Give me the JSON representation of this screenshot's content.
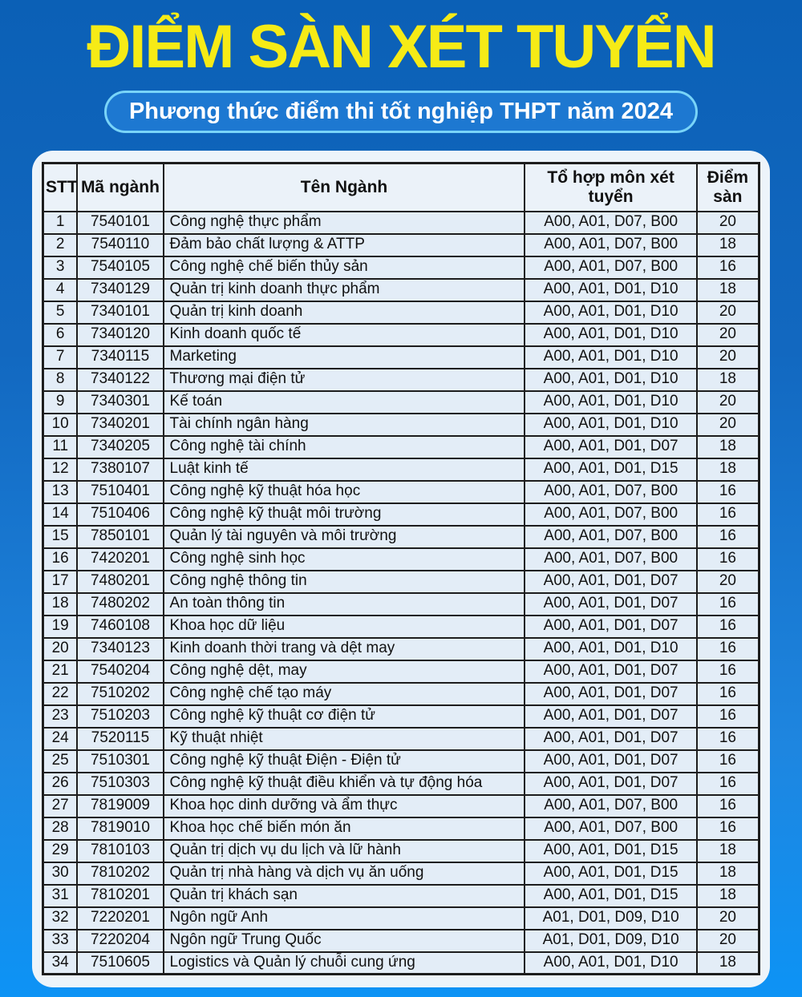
{
  "header": {
    "title": "ĐIỂM SÀN XÉT TUYỂN",
    "subtitle": "Phương thức điểm thi tốt nghiệp THPT năm 2024"
  },
  "colors": {
    "background_top": "#0b60b6",
    "background_bottom": "#0d93f5",
    "title_yellow": "#f6eb16",
    "subtitle_border": "#79d4f8",
    "subtitle_background": "#1d78d1",
    "panel_background": "#edf4fa",
    "row_background": "#e3edf7",
    "table_border": "#1d1d1d"
  },
  "table": {
    "columns": [
      "STT",
      "Mã ngành",
      "Tên Ngành",
      "Tổ hợp môn xét tuyển",
      "Điểm sàn"
    ],
    "rows": [
      [
        1,
        "7540101",
        "Công nghệ thực phẩm",
        "A00, A01, D07, B00",
        20
      ],
      [
        2,
        "7540110",
        "Đảm bảo chất lượng & ATTP",
        "A00, A01, D07, B00",
        18
      ],
      [
        3,
        "7540105",
        "Công nghệ chế biến thủy sản",
        "A00, A01, D07, B00",
        16
      ],
      [
        4,
        "7340129",
        "Quản trị kinh doanh thực phẩm",
        "A00, A01, D01, D10",
        18
      ],
      [
        5,
        "7340101",
        "Quản trị kinh doanh",
        "A00, A01, D01, D10",
        20
      ],
      [
        6,
        "7340120",
        "Kinh doanh quốc tế",
        "A00, A01, D01, D10",
        20
      ],
      [
        7,
        "7340115",
        "Marketing",
        "A00, A01, D01, D10",
        20
      ],
      [
        8,
        "7340122",
        "Thương mại điện tử",
        "A00, A01, D01, D10",
        18
      ],
      [
        9,
        "7340301",
        "Kế toán",
        "A00, A01, D01, D10",
        20
      ],
      [
        10,
        "7340201",
        "Tài chính ngân hàng",
        "A00, A01, D01, D10",
        20
      ],
      [
        11,
        "7340205",
        "Công nghệ tài chính",
        "A00, A01, D01, D07",
        18
      ],
      [
        12,
        "7380107",
        "Luật kinh tế",
        "A00, A01, D01, D15",
        18
      ],
      [
        13,
        "7510401",
        "Công nghệ kỹ thuật hóa học",
        "A00, A01, D07, B00",
        16
      ],
      [
        14,
        "7510406",
        "Công nghệ kỹ thuật môi trường",
        "A00, A01, D07, B00",
        16
      ],
      [
        15,
        "7850101",
        "Quản lý tài nguyên và môi trường",
        "A00, A01, D07, B00",
        16
      ],
      [
        16,
        "7420201",
        "Công nghệ sinh học",
        "A00, A01, D07, B00",
        16
      ],
      [
        17,
        "7480201",
        "Công nghệ thông tin",
        "A00, A01, D01, D07",
        20
      ],
      [
        18,
        "7480202",
        "An toàn thông tin",
        "A00, A01, D01, D07",
        16
      ],
      [
        19,
        "7460108",
        "Khoa học dữ liệu",
        "A00, A01, D01, D07",
        16
      ],
      [
        20,
        "7340123",
        "Kinh doanh thời trang và dệt may",
        "A00, A01, D01, D10",
        16
      ],
      [
        21,
        "7540204",
        "Công nghệ dệt, may",
        "A00, A01, D01, D07",
        16
      ],
      [
        22,
        "7510202",
        "Công nghệ chế tạo máy",
        "A00, A01, D01, D07",
        16
      ],
      [
        23,
        "7510203",
        "Công nghệ kỹ thuật cơ điện tử",
        "A00, A01, D01, D07",
        16
      ],
      [
        24,
        "7520115",
        "Kỹ thuật nhiệt",
        "A00, A01, D01, D07",
        16
      ],
      [
        25,
        "7510301",
        "Công nghệ kỹ thuật Điện - Điện tử",
        "A00, A01, D01, D07",
        16
      ],
      [
        26,
        "7510303",
        "Công nghệ kỹ thuật điều khiển và tự động hóa",
        "A00, A01, D01, D07",
        16
      ],
      [
        27,
        "7819009",
        "Khoa học dinh dưỡng và ẩm thực",
        "A00, A01, D07, B00",
        16
      ],
      [
        28,
        "7819010",
        "Khoa học chế biến món ăn",
        "A00, A01, D07, B00",
        16
      ],
      [
        29,
        "7810103",
        "Quản trị dịch vụ du lịch và lữ hành",
        "A00, A01, D01, D15",
        18
      ],
      [
        30,
        "7810202",
        "Quản trị nhà hàng và dịch vụ ăn uống",
        "A00, A01, D01, D15",
        18
      ],
      [
        31,
        "7810201",
        "Quản trị khách sạn",
        "A00, A01, D01, D15",
        18
      ],
      [
        32,
        "7220201",
        "Ngôn ngữ Anh",
        "A01, D01, D09, D10",
        20
      ],
      [
        33,
        "7220204",
        "Ngôn ngữ Trung Quốc",
        "A01, D01, D09, D10",
        20
      ],
      [
        34,
        "7510605",
        "Logistics và Quản lý chuỗi cung ứng",
        "A00, A01, D01, D10",
        18
      ]
    ]
  }
}
